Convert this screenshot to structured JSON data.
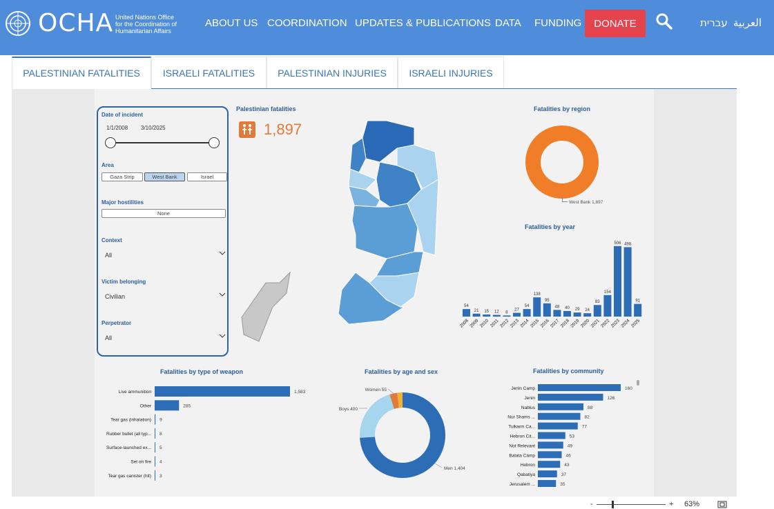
{
  "header": {
    "logo_text": "OCHA",
    "logo_sub": [
      "United Nations Office",
      "for the Coordination of",
      "Humanitarian Affairs"
    ],
    "nav": [
      "ABOUT US",
      "COORDINATION",
      "UPDATES & PUBLICATIONS",
      "DATA",
      "FUNDING"
    ],
    "donate": "DONATE",
    "lang_arabic": "العربية",
    "lang_hebrew": "עברית",
    "bg_color": "#4f8ddb"
  },
  "tabs": [
    "PALESTINIAN FATALITIES",
    "ISRAELI FATALITIES",
    "PALESTINIAN INJURIES",
    "ISRAELI INJURIES"
  ],
  "filters": {
    "date_label": "Date of incident",
    "date_start": "1/1/2008",
    "date_end": "3/10/2025",
    "area_label": "Area",
    "area_options": [
      "Gaza Strip",
      "West Bank",
      "Israel"
    ],
    "area_selected": "West Bank",
    "hostilities_label": "Major hostilities",
    "hostilities_value": "None",
    "context_label": "Context",
    "context_value": "All",
    "victim_label": "Victim belonging",
    "victim_value": "Civilian",
    "perpetrator_label": "Perpetrator",
    "perpetrator_value": "All"
  },
  "kpi": {
    "title": "Palestinian fatalities",
    "value": "1,897"
  },
  "region_chart": {
    "title": "Fatalities by region",
    "label": "West Bank 1,897"
  },
  "chart_data": [
    {
      "type": "bar",
      "title": "Fatalities by year",
      "categories": [
        "2008",
        "2009",
        "2010",
        "2011",
        "2012",
        "2013",
        "2014",
        "2015",
        "2016",
        "2017",
        "2018",
        "2019",
        "2020",
        "2021",
        "2022",
        "2023",
        "2024",
        "2025"
      ],
      "values": [
        54,
        21,
        15,
        12,
        8,
        27,
        54,
        138,
        95,
        48,
        40,
        29,
        24,
        83,
        154,
        506,
        498,
        91
      ]
    },
    {
      "type": "bar",
      "title": "Fatalities by type of weapon",
      "categories": [
        "Live ammunition",
        "Other",
        "Tear gas (inhalation)",
        "Rubber bullet (all typ...",
        "Surface-launched ex...",
        "Set on fire",
        "Tear gas canister (hit)"
      ],
      "values": [
        1583,
        285,
        9,
        8,
        5,
        4,
        3
      ],
      "value_labels": [
        "1,583",
        "285",
        "9",
        "8",
        "5",
        "4",
        "3"
      ]
    },
    {
      "type": "pie",
      "title": "Fatalities by age and sex",
      "slices": [
        {
          "label": "Men 1,404",
          "value": 1404,
          "color": "#2d6db5"
        },
        {
          "label": "Boys 400",
          "value": 400,
          "color": "#a6d5ee"
        },
        {
          "label": "Women 55",
          "value": 55,
          "color": "#e07b39"
        },
        {
          "label": "",
          "value": 38,
          "color": "#f3b233"
        }
      ]
    },
    {
      "type": "bar",
      "title": "Fatalities by community",
      "categories": [
        "Jenin Camp",
        "Jenin",
        "Nablus",
        "Nur Shams ...",
        "Tulkarm Ca...",
        "Hebron Cit...",
        "Not Relevant",
        "Balata Camp",
        "Hebron",
        "Qabatiya",
        "Jerusalem ..."
      ],
      "values": [
        160,
        126,
        88,
        82,
        77,
        53,
        49,
        46,
        43,
        37,
        35
      ]
    }
  ],
  "zoom": {
    "minus": "-",
    "plus": "+",
    "value": "63%",
    "level": 0.63
  },
  "colors": {
    "accent": "#3a75b8",
    "bar": "#2d6db5",
    "donut": "#f07d27",
    "donate": "#e5434e"
  }
}
